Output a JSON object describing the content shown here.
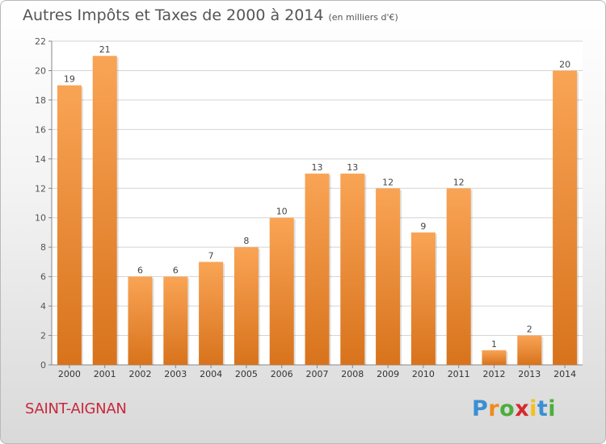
{
  "chart_data": {
    "type": "bar",
    "title": "Autres Impôts et Taxes de 2000 à 2014",
    "subtitle": "(en milliers d'€)",
    "categories": [
      "2000",
      "2001",
      "2002",
      "2003",
      "2004",
      "2005",
      "2006",
      "2007",
      "2008",
      "2009",
      "2010",
      "2011",
      "2012",
      "2013",
      "2014"
    ],
    "values": [
      19,
      21,
      6,
      6,
      7,
      8,
      10,
      13,
      13,
      12,
      9,
      12,
      1,
      2,
      20
    ],
    "ylim": [
      0,
      22
    ],
    "yticks": [
      0,
      2,
      4,
      6,
      8,
      10,
      12,
      14,
      16,
      18,
      20,
      22
    ],
    "grid": true,
    "bar_color": "#f0913a",
    "xlabel": "",
    "ylabel": ""
  },
  "commune": "SAINT-AIGNAN",
  "logo": {
    "text": "Proxiti",
    "letters": [
      "P",
      "r",
      "o",
      "x",
      "i",
      "t",
      "i"
    ],
    "colors": [
      "#3a8fd4",
      "#f08a1e",
      "#4cae3c",
      "#d8282c",
      "#f5c01e",
      "#3a8fd4",
      "#4cae3c"
    ]
  },
  "colors": {
    "accent": "#c8283c",
    "grid": "#d4d4d4",
    "text": "#555555"
  }
}
